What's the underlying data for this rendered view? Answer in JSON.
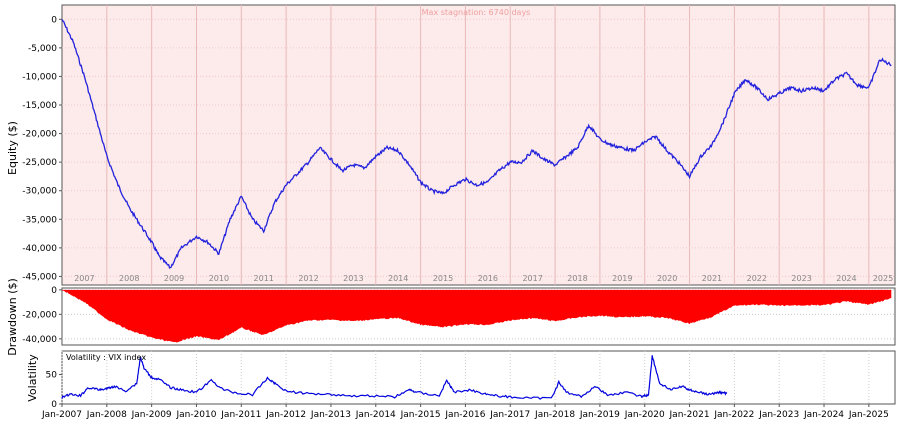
{
  "colors": {
    "equity_line": "#2222dd",
    "equity_bg": "#fdeaea",
    "drawdown_fill": "#ff0000",
    "volatility_line": "#0000dd",
    "stagnation_text": "#f0a0a0",
    "year_label": "#888888"
  },
  "chart_data": [
    {
      "type": "line",
      "ylabel": "Equity ($)",
      "annotation": "Max stagnation: 6740 days",
      "ylim": [
        -46500,
        2500
      ],
      "y_ticks": [
        0,
        -5000,
        -10000,
        -15000,
        -20000,
        -25000,
        -30000,
        -35000,
        -40000,
        -45000
      ],
      "y_tick_labels": [
        "0",
        "-5,000",
        "-10,000",
        "-15,000",
        "-20,000",
        "-25,000",
        "-30,000",
        "-35,000",
        "-40,000",
        "-45,000"
      ],
      "year_labels": [
        "2007",
        "2008",
        "2009",
        "2010",
        "2011",
        "2012",
        "2013",
        "2014",
        "2015",
        "2016",
        "2017",
        "2018",
        "2019",
        "2020",
        "2021",
        "2022",
        "2023",
        "2024",
        "2025"
      ],
      "series": [
        {
          "x": [
            "2007-01",
            "2007-04",
            "2007-07",
            "2007-10",
            "2008-01",
            "2008-04",
            "2008-07",
            "2008-10",
            "2009-01",
            "2009-03",
            "2009-06",
            "2009-09",
            "2010-01",
            "2010-04",
            "2010-07",
            "2010-10",
            "2011-01",
            "2011-04",
            "2011-07",
            "2011-10",
            "2012-01",
            "2012-04",
            "2012-07",
            "2012-10",
            "2013-01",
            "2013-04",
            "2013-07",
            "2013-10",
            "2014-01",
            "2014-04",
            "2014-07",
            "2014-10",
            "2015-01",
            "2015-04",
            "2015-07",
            "2015-10",
            "2016-01",
            "2016-04",
            "2016-07",
            "2016-10",
            "2017-01",
            "2017-04",
            "2017-07",
            "2017-10",
            "2018-01",
            "2018-04",
            "2018-07",
            "2018-10",
            "2019-01",
            "2019-04",
            "2019-07",
            "2019-10",
            "2020-01",
            "2020-04",
            "2020-07",
            "2020-10",
            "2021-01",
            "2021-04",
            "2021-07",
            "2021-10",
            "2022-01",
            "2022-04",
            "2022-07",
            "2022-10",
            "2023-01",
            "2023-04",
            "2023-07",
            "2023-10",
            "2024-01",
            "2024-04",
            "2024-07",
            "2024-10",
            "2025-01",
            "2025-04",
            "2025-07"
          ],
          "values": [
            0,
            -4000,
            -10000,
            -17000,
            -24000,
            -29000,
            -33000,
            -36000,
            -39000,
            -41500,
            -43500,
            -40000,
            -38000,
            -39000,
            -41000,
            -35000,
            -31000,
            -35000,
            -37000,
            -32000,
            -29000,
            -27000,
            -25000,
            -22500,
            -24500,
            -26500,
            -25500,
            -26000,
            -24000,
            -22500,
            -23000,
            -25500,
            -28500,
            -30000,
            -30500,
            -29000,
            -28000,
            -29000,
            -28500,
            -26500,
            -25000,
            -25000,
            -23000,
            -24500,
            -25500,
            -24000,
            -22500,
            -18500,
            -21000,
            -22000,
            -22500,
            -23000,
            -21500,
            -20500,
            -23000,
            -25000,
            -27500,
            -24000,
            -22000,
            -18000,
            -13000,
            -10500,
            -12000,
            -14000,
            -13000,
            -12000,
            -12500,
            -12000,
            -12500,
            -10500,
            -9500,
            -11500,
            -12000,
            -7000,
            -8000
          ]
        }
      ]
    },
    {
      "type": "area",
      "ylabel": "Drawdown ($)",
      "ylim": [
        -45000,
        1500
      ],
      "y_ticks": [
        0,
        -20000,
        -40000
      ],
      "y_tick_labels": [
        "0",
        "-20,000",
        "-40,000"
      ],
      "series": [
        {
          "x": [
            "2007-01",
            "2007-07",
            "2008-01",
            "2008-07",
            "2009-01",
            "2009-07",
            "2010-01",
            "2010-07",
            "2011-01",
            "2011-07",
            "2012-01",
            "2012-07",
            "2013-01",
            "2013-07",
            "2014-01",
            "2014-07",
            "2015-01",
            "2015-07",
            "2016-01",
            "2016-07",
            "2017-01",
            "2017-07",
            "2018-01",
            "2018-07",
            "2019-01",
            "2019-07",
            "2020-01",
            "2020-07",
            "2021-01",
            "2021-07",
            "2022-01",
            "2022-07",
            "2023-01",
            "2023-07",
            "2024-01",
            "2024-07",
            "2025-01",
            "2025-07"
          ],
          "values": [
            0,
            -10000,
            -24000,
            -33000,
            -39000,
            -43000,
            -38000,
            -41000,
            -31000,
            -37000,
            -29000,
            -25000,
            -24500,
            -25500,
            -24000,
            -23000,
            -28500,
            -30500,
            -28000,
            -28500,
            -25000,
            -23000,
            -25500,
            -22500,
            -21000,
            -22500,
            -21500,
            -23000,
            -27500,
            -22000,
            -13000,
            -12000,
            -13000,
            -12500,
            -12500,
            -9500,
            -12000,
            -7000
          ]
        }
      ]
    },
    {
      "type": "line",
      "ylabel": "Volatility",
      "legend": "Volatility : VIX index",
      "ylim": [
        0,
        90
      ],
      "y_ticks": [
        0,
        50
      ],
      "y_tick_labels": [
        "0",
        "50"
      ],
      "x_tick_labels": [
        "Jan-2007",
        "Jan-2008",
        "Jan-2009",
        "Jan-2010",
        "Jan-2011",
        "Jan-2012",
        "Jan-2013",
        "Jan-2014",
        "Jan-2015",
        "Jan-2016",
        "Jan-2017",
        "Jan-2018",
        "Jan-2019",
        "Jan-2020",
        "Jan-2021",
        "Jan-2022",
        "Jan-2023",
        "Jan-2024",
        "Jan-2025"
      ],
      "series": [
        {
          "x": [
            "2007-01",
            "2007-03",
            "2007-06",
            "2007-08",
            "2007-11",
            "2008-01",
            "2008-03",
            "2008-06",
            "2008-09",
            "2008-10",
            "2008-11",
            "2009-01",
            "2009-03",
            "2009-06",
            "2009-09",
            "2010-01",
            "2010-05",
            "2010-08",
            "2010-12",
            "2011-04",
            "2011-08",
            "2011-10",
            "2012-01",
            "2012-06",
            "2012-12",
            "2013-06",
            "2013-12",
            "2014-06",
            "2014-10",
            "2014-12",
            "2015-06",
            "2015-08",
            "2015-10",
            "2016-02",
            "2016-06",
            "2016-09",
            "2017-01",
            "2017-06",
            "2017-12",
            "2018-02",
            "2018-04",
            "2018-08",
            "2018-12",
            "2019-03",
            "2019-08",
            "2019-12",
            "2020-02",
            "2020-03",
            "2020-05",
            "2020-08",
            "2020-11",
            "2021-01",
            "2021-03",
            "2021-06",
            "2021-09",
            "2021-11"
          ],
          "values": [
            11,
            16,
            14,
            28,
            24,
            26,
            30,
            22,
            35,
            80,
            60,
            45,
            42,
            28,
            24,
            20,
            40,
            25,
            18,
            16,
            44,
            35,
            22,
            18,
            17,
            14,
            14,
            12,
            24,
            20,
            14,
            40,
            20,
            24,
            18,
            14,
            12,
            10,
            10,
            37,
            20,
            13,
            30,
            15,
            20,
            13,
            15,
            82,
            35,
            24,
            30,
            24,
            21,
            16,
            20,
            18
          ]
        }
      ]
    }
  ]
}
